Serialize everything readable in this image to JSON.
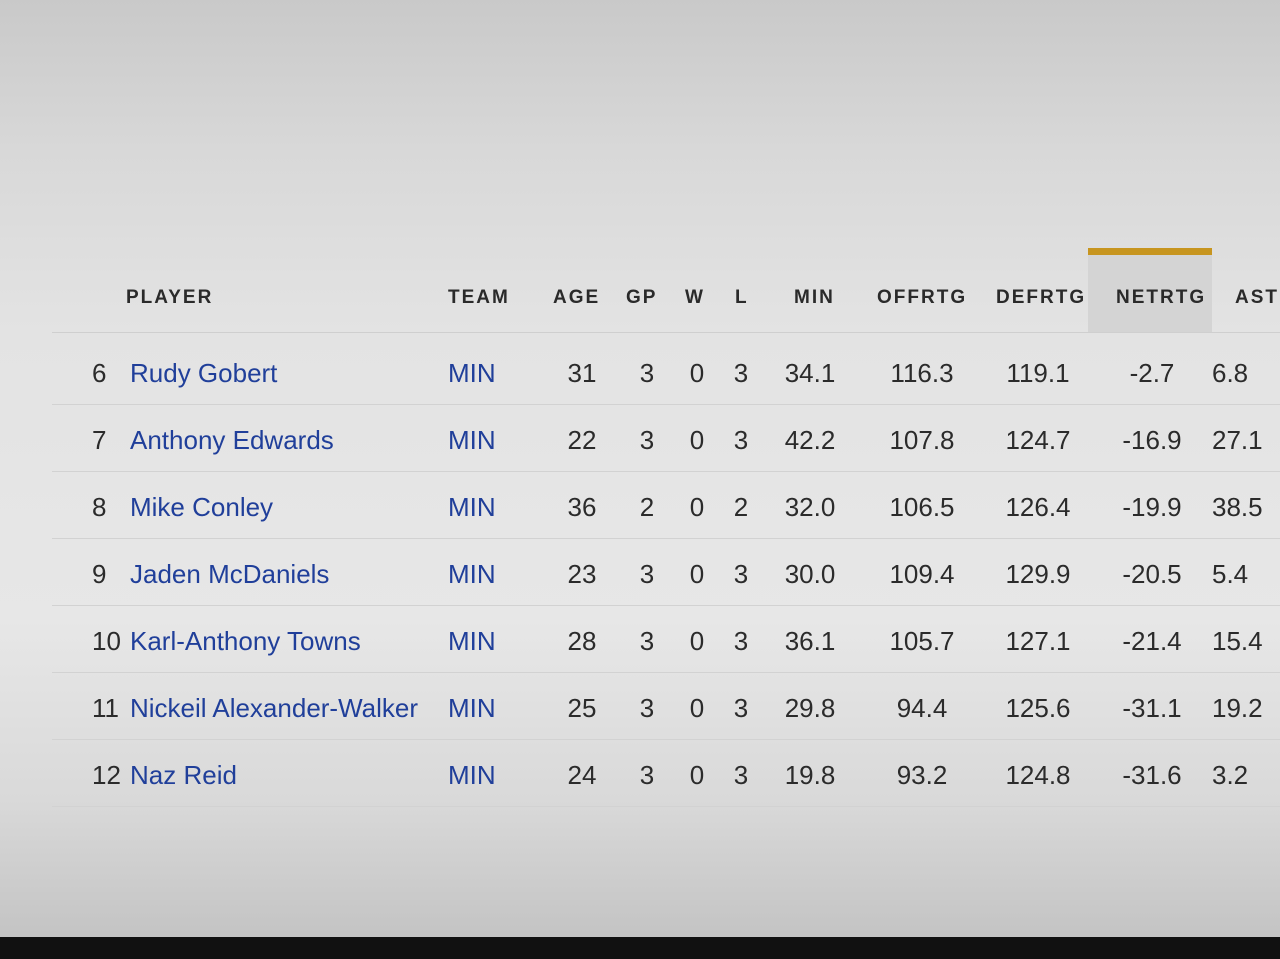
{
  "table": {
    "columns": [
      {
        "key": "player",
        "label": "PLAYER"
      },
      {
        "key": "team",
        "label": "TEAM"
      },
      {
        "key": "age",
        "label": "AGE"
      },
      {
        "key": "gp",
        "label": "GP"
      },
      {
        "key": "w",
        "label": "W"
      },
      {
        "key": "l",
        "label": "L"
      },
      {
        "key": "min",
        "label": "MIN"
      },
      {
        "key": "offrtg",
        "label": "OFFRTG"
      },
      {
        "key": "defrtg",
        "label": "DEFRTG"
      },
      {
        "key": "netrtg",
        "label": "NETRTG"
      },
      {
        "key": "ast",
        "label": "AST"
      }
    ],
    "sorted_column": "NETRTG",
    "sort_accent": "#c7951f",
    "link_color": "#203f9a",
    "rows": [
      {
        "rank": "6",
        "player": "Rudy Gobert",
        "team": "MIN",
        "age": "31",
        "gp": "3",
        "w": "0",
        "l": "3",
        "min": "34.1",
        "offrtg": "116.3",
        "defrtg": "119.1",
        "netrtg": "-2.7",
        "ast": "6.8"
      },
      {
        "rank": "7",
        "player": "Anthony Edwards",
        "team": "MIN",
        "age": "22",
        "gp": "3",
        "w": "0",
        "l": "3",
        "min": "42.2",
        "offrtg": "107.8",
        "defrtg": "124.7",
        "netrtg": "-16.9",
        "ast": "27.1"
      },
      {
        "rank": "8",
        "player": "Mike Conley",
        "team": "MIN",
        "age": "36",
        "gp": "2",
        "w": "0",
        "l": "2",
        "min": "32.0",
        "offrtg": "106.5",
        "defrtg": "126.4",
        "netrtg": "-19.9",
        "ast": "38.5"
      },
      {
        "rank": "9",
        "player": "Jaden McDaniels",
        "team": "MIN",
        "age": "23",
        "gp": "3",
        "w": "0",
        "l": "3",
        "min": "30.0",
        "offrtg": "109.4",
        "defrtg": "129.9",
        "netrtg": "-20.5",
        "ast": "5.4"
      },
      {
        "rank": "10",
        "player": "Karl-Anthony Towns",
        "team": "MIN",
        "age": "28",
        "gp": "3",
        "w": "0",
        "l": "3",
        "min": "36.1",
        "offrtg": "105.7",
        "defrtg": "127.1",
        "netrtg": "-21.4",
        "ast": "15.4"
      },
      {
        "rank": "11",
        "player": "Nickeil Alexander-Walker",
        "team": "MIN",
        "age": "25",
        "gp": "3",
        "w": "0",
        "l": "3",
        "min": "29.8",
        "offrtg": "94.4",
        "defrtg": "125.6",
        "netrtg": "-31.1",
        "ast": "19.2"
      },
      {
        "rank": "12",
        "player": "Naz Reid",
        "team": "MIN",
        "age": "24",
        "gp": "3",
        "w": "0",
        "l": "3",
        "min": "19.8",
        "offrtg": "93.2",
        "defrtg": "124.8",
        "netrtg": "-31.6",
        "ast": "3.2"
      }
    ]
  }
}
